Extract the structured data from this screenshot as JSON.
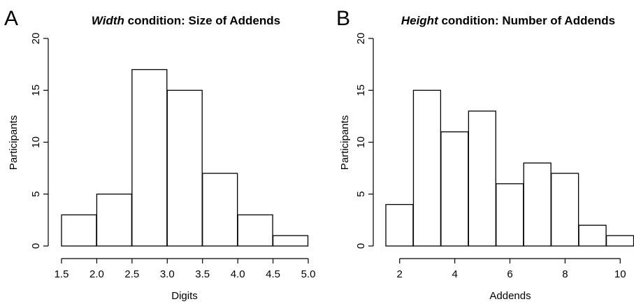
{
  "chart_data": [
    {
      "type": "bar",
      "panel_label": "A",
      "title_italic": "Width",
      "title_rest": " condition: Size of Addends",
      "xlabel": "Digits",
      "ylabel": "Participants",
      "xlim": [
        1.5,
        5.0
      ],
      "ylim": [
        0,
        20
      ],
      "xticks": [
        1.5,
        2.0,
        2.5,
        3.0,
        3.5,
        4.0,
        4.5,
        5.0
      ],
      "xtick_labels": [
        "1.5",
        "2.0",
        "2.5",
        "3.0",
        "3.5",
        "4.0",
        "4.5",
        "5.0"
      ],
      "yticks": [
        0,
        5,
        10,
        15,
        20
      ],
      "ytick_labels": [
        "0",
        "5",
        "10",
        "15",
        "20"
      ],
      "bins": [
        {
          "x0": 1.5,
          "x1": 2.0,
          "count": 3
        },
        {
          "x0": 2.0,
          "x1": 2.5,
          "count": 5
        },
        {
          "x0": 2.5,
          "x1": 3.0,
          "count": 17
        },
        {
          "x0": 3.0,
          "x1": 3.5,
          "count": 15
        },
        {
          "x0": 3.5,
          "x1": 4.0,
          "count": 7
        },
        {
          "x0": 4.0,
          "x1": 4.5,
          "count": 3
        },
        {
          "x0": 4.5,
          "x1": 5.0,
          "count": 1
        }
      ],
      "grid": false,
      "bar_fill": "#ffffff",
      "bar_stroke": "#000000"
    },
    {
      "type": "bar",
      "panel_label": "B",
      "title_italic": "Height",
      "title_rest": " condition: Number of Addends",
      "xlabel": "Addends",
      "ylabel": "Participants",
      "xlim": [
        1.5,
        10.5
      ],
      "ylim": [
        0,
        20
      ],
      "xticks": [
        2,
        4,
        6,
        8,
        10
      ],
      "xtick_labels": [
        "2",
        "4",
        "6",
        "8",
        "10"
      ],
      "yticks": [
        0,
        5,
        10,
        15,
        20
      ],
      "ytick_labels": [
        "0",
        "5",
        "10",
        "15",
        "20"
      ],
      "bins": [
        {
          "x0": 1.5,
          "x1": 2.5,
          "count": 4
        },
        {
          "x0": 2.5,
          "x1": 3.5,
          "count": 15
        },
        {
          "x0": 3.5,
          "x1": 4.5,
          "count": 11
        },
        {
          "x0": 4.5,
          "x1": 5.5,
          "count": 13
        },
        {
          "x0": 5.5,
          "x1": 6.5,
          "count": 6
        },
        {
          "x0": 6.5,
          "x1": 7.5,
          "count": 8
        },
        {
          "x0": 7.5,
          "x1": 8.5,
          "count": 7
        },
        {
          "x0": 8.5,
          "x1": 9.5,
          "count": 2
        },
        {
          "x0": 9.5,
          "x1": 10.5,
          "count": 1
        }
      ],
      "grid": false,
      "bar_fill": "#ffffff",
      "bar_stroke": "#000000"
    }
  ]
}
